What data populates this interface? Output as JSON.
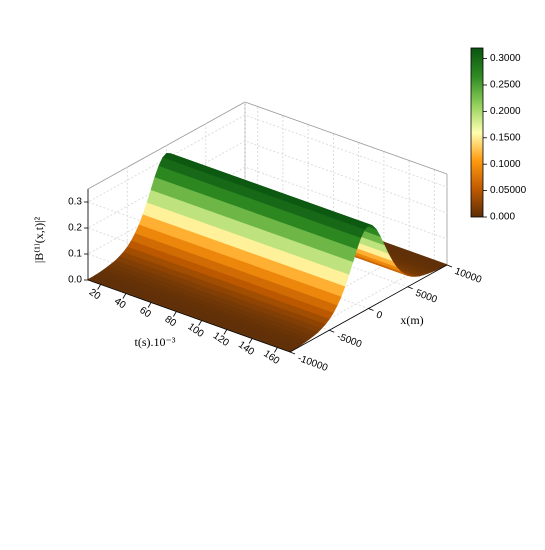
{
  "chart_data": {
    "type": "surface3d",
    "zlabel": "|B⁽¹⁾(x,t)|²",
    "tlabel": "t(s).10⁻³",
    "xlabel": "x(m)",
    "x": [
      -10000,
      -9500,
      -9000,
      -8500,
      -8000,
      -7500,
      -7000,
      -6500,
      -6000,
      -5500,
      -5000,
      -4500,
      -4000,
      -3500,
      -3000,
      -2500,
      -2000,
      -1500,
      -1000,
      -500,
      0,
      500,
      1000,
      1500,
      2000,
      2500,
      3000,
      3500,
      4000,
      4500,
      5000,
      5500,
      6000,
      6500,
      7000,
      7500,
      8000,
      8500,
      9000,
      9500,
      10000
    ],
    "z": [
      0.002,
      0.002,
      0.003,
      0.004,
      0.006,
      0.009,
      0.012,
      0.016,
      0.023,
      0.031,
      0.043,
      0.058,
      0.078,
      0.103,
      0.134,
      0.171,
      0.211,
      0.252,
      0.287,
      0.311,
      0.32,
      0.311,
      0.287,
      0.252,
      0.211,
      0.171,
      0.134,
      0.103,
      0.078,
      0.058,
      0.043,
      0.031,
      0.023,
      0.016,
      0.012,
      0.009,
      0.006,
      0.004,
      0.003,
      0.002,
      0.002
    ],
    "tlim": [
      10,
      170
    ],
    "tticks": [
      20,
      40,
      60,
      80,
      100,
      120,
      140,
      160
    ],
    "xlim": [
      -10000,
      10000
    ],
    "xticks": [
      -10000,
      -5000,
      0,
      5000,
      10000
    ],
    "zlim": [
      0,
      0.35
    ],
    "zticks": [
      {
        "value": 0,
        "label": "0.0"
      },
      0.1,
      0.2,
      0.3
    ],
    "clim": [
      0,
      0.32
    ],
    "cticks": [
      {
        "value": 0,
        "label": "0.000"
      },
      {
        "value": 0.05,
        "label": "0.05000"
      },
      {
        "value": 0.1,
        "label": "0.1000"
      },
      {
        "value": 0.15,
        "label": "0.1500"
      },
      {
        "value": 0.2,
        "label": "0.2000"
      },
      {
        "value": 0.25,
        "label": "0.2500"
      },
      {
        "value": 0.3,
        "label": "0.3000"
      }
    ],
    "colormap": [
      "#5c2e08",
      "#c05a00",
      "#ff9a10",
      "#ffffb0",
      "#8fcf5a",
      "#2e8a22",
      "#0a5410"
    ],
    "grid": true
  }
}
